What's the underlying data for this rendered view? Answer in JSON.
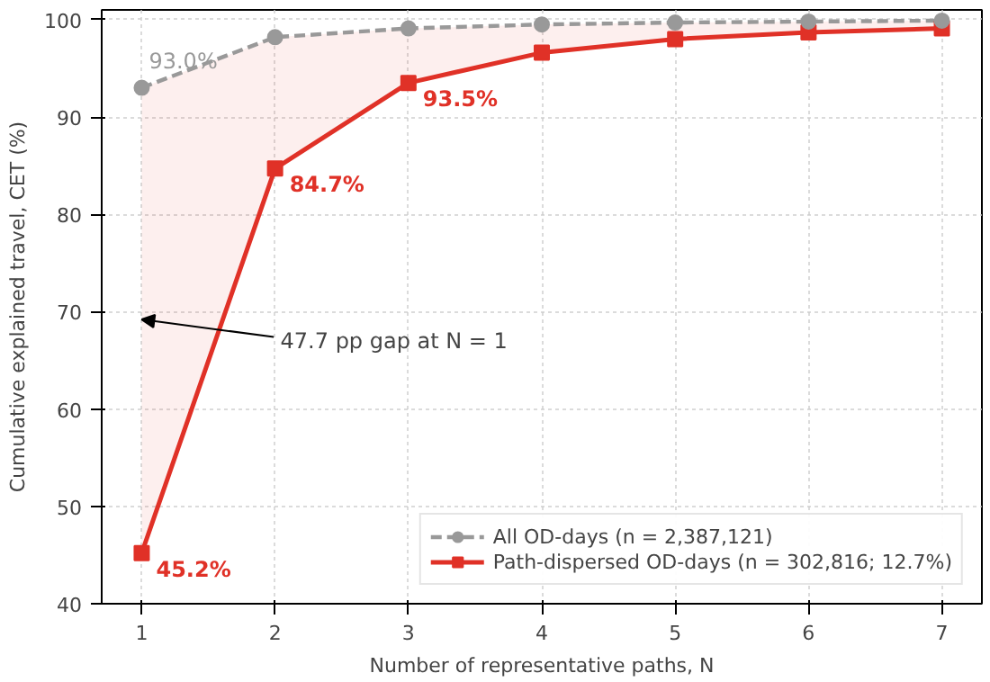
{
  "chart_data": {
    "type": "line",
    "xlabel": "Number of representative paths, N",
    "ylabel": "Cumulative explained travel, CET (%)",
    "x": [
      1,
      2,
      3,
      4,
      5,
      6,
      7
    ],
    "series": [
      {
        "name": "All OD-days (n = 2,387,121)",
        "color": "#999999",
        "values": [
          93.0,
          98.2,
          99.1,
          99.5,
          99.7,
          99.8,
          99.9
        ],
        "marker": "circle",
        "line_style": "dashed",
        "value_labels": [
          "93.0%",
          null,
          null,
          null,
          null,
          null,
          null
        ]
      },
      {
        "name": "Path-dispersed OD-days (n = 302,816; 12.7%)",
        "color": "#e03127",
        "values": [
          45.2,
          84.7,
          93.5,
          96.6,
          98.0,
          98.7,
          99.1
        ],
        "marker": "square",
        "line_style": "solid",
        "value_labels": [
          "45.2%",
          "84.7%",
          "93.5%",
          null,
          null,
          null,
          null
        ],
        "lower": [
          45.2,
          84.7,
          93.5,
          96.6,
          98.0,
          98.7,
          99.1
        ],
        "upper": [
          93.0,
          98.2,
          99.1,
          99.5,
          99.7,
          99.8,
          99.9
        ]
      }
    ],
    "annotations": [
      {
        "text": "47.7 pp gap at N = 1",
        "x": 1,
        "y": 69.2
      }
    ],
    "xlim": [
      0.7,
      7.3
    ],
    "ylim": [
      40,
      101
    ],
    "xticks": [
      1,
      2,
      3,
      4,
      5,
      6,
      7
    ],
    "yticks": [
      40,
      50,
      60,
      70,
      80,
      90,
      100
    ],
    "grid": true,
    "legend": "bottom right"
  }
}
